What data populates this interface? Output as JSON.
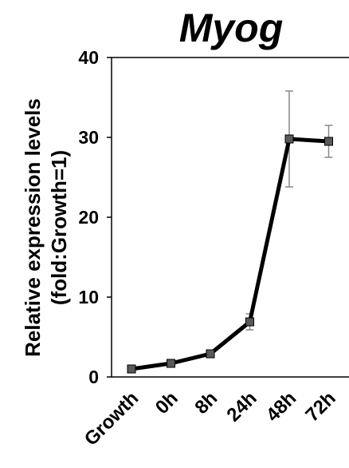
{
  "chart_data": {
    "type": "line",
    "title": "Myog",
    "ylabel_line1": "Relative expression levels",
    "ylabel_line2": "(fold:Growth=1)",
    "xlabel": "",
    "categories": [
      "Growth",
      "0h",
      "8h",
      "24h",
      "48h",
      "72h"
    ],
    "series": [
      {
        "values": [
          1.0,
          1.7,
          2.9,
          6.9,
          29.8,
          29.5
        ],
        "errors": [
          0,
          0,
          0,
          1.0,
          6.0,
          2.0
        ],
        "color": "#000000",
        "marker_color": "#595959"
      }
    ],
    "ylim": [
      0,
      40
    ],
    "yticks": [
      0,
      10,
      20,
      30,
      40
    ],
    "grid": false
  }
}
